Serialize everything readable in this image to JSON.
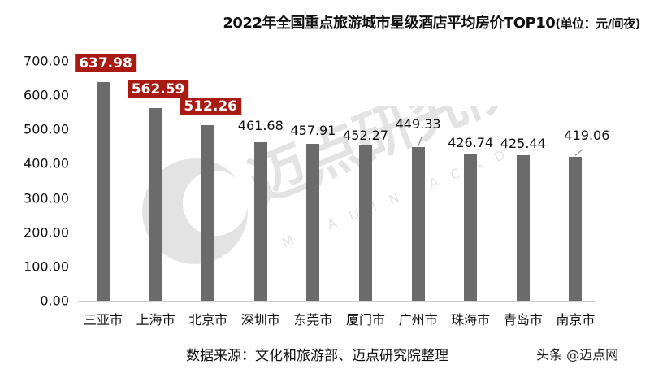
{
  "title": {
    "main": "2022年全国重点旅游城市星级酒店平均房价TOP10",
    "unit": "(单位：元/间夜)"
  },
  "source": "数据来源：文化和旅游部、迈点研究院整理",
  "credit": "头条 @迈点网",
  "watermark": {
    "cn": "迈点研究院",
    "en": "MEADIN ACADEMY"
  },
  "colors": {
    "bar": "#6b6b6b",
    "highlight": "#a91b12"
  },
  "chart_data": {
    "type": "bar",
    "title": "2022年全国重点旅游城市星级酒店平均房价TOP10(单位：元/间夜)",
    "xlabel": "",
    "ylabel": "",
    "ylim": [
      0,
      700
    ],
    "yticks": [
      "0.00",
      "100.00",
      "200.00",
      "300.00",
      "400.00",
      "500.00",
      "600.00",
      "700.00"
    ],
    "categories": [
      "三亚市",
      "上海市",
      "北京市",
      "深圳市",
      "东莞市",
      "厦门市",
      "广州市",
      "珠海市",
      "青岛市",
      "南京市"
    ],
    "values": [
      637.98,
      562.59,
      512.26,
      461.68,
      457.91,
      452.27,
      449.33,
      426.74,
      425.44,
      419.06
    ],
    "labels": [
      "637.98",
      "562.59",
      "512.26",
      "461.68",
      "457.91",
      "452.27",
      "449.33",
      "426.74",
      "425.44",
      "419.06"
    ],
    "highlighted": [
      0,
      1,
      2
    ],
    "grid": false,
    "legend": null
  }
}
